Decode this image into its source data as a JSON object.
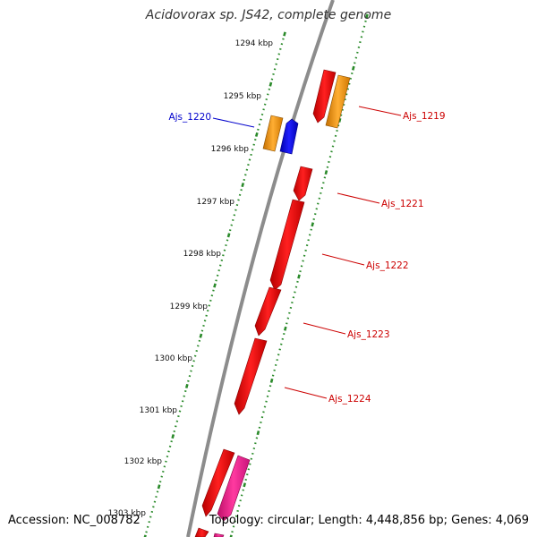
{
  "title": "Acidovorax sp. JS42, complete genome",
  "accession": "Accession: NC_008782",
  "topology": "Topology: circular; Length: 4,448,856 bp; Genes: 4,069",
  "colors": {
    "backbone": "#8c8c8c",
    "tick": "#2a8a2a",
    "cds": "#ff0000",
    "orange": "#ff9900",
    "blue": "#0000ff",
    "magenta": "#ff1493",
    "label_red": "#cc0000",
    "label_blue": "#0000cc"
  },
  "scale_labels": [
    "1294 kbp",
    "1295 kbp",
    "1296 kbp",
    "1297 kbp",
    "1298 kbp",
    "1299 kbp",
    "1300 kbp",
    "1301 kbp",
    "1302 kbp",
    "1303 kbp"
  ],
  "genes": [
    {
      "name": "Ajs_1219",
      "label_color": "#cc0000"
    },
    {
      "name": "Ajs_1220",
      "label_color": "#0000cc"
    },
    {
      "name": "Ajs_1221",
      "label_color": "#cc0000"
    },
    {
      "name": "Ajs_1222",
      "label_color": "#cc0000"
    },
    {
      "name": "Ajs_1223",
      "label_color": "#cc0000"
    },
    {
      "name": "Ajs_1224",
      "label_color": "#cc0000"
    }
  ]
}
